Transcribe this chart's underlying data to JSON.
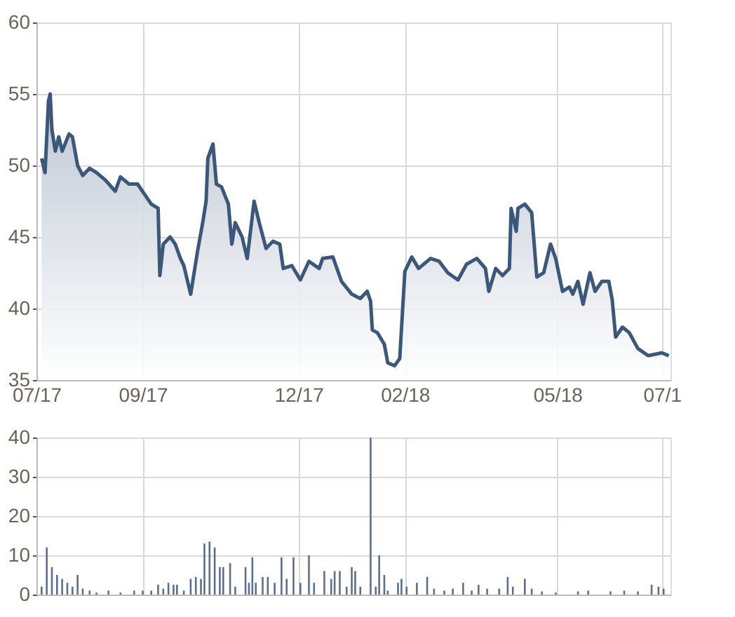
{
  "chart_data": [
    {
      "type": "area",
      "color": "#3b5779",
      "grid": true,
      "x": [
        "2017-07-04",
        "2017-07-06",
        "2017-07-08",
        "2017-07-09",
        "2017-07-10",
        "2017-07-12",
        "2017-07-14",
        "2017-07-16",
        "2017-07-20",
        "2017-07-22",
        "2017-07-25",
        "2017-07-28",
        "2017-08-01",
        "2017-08-05",
        "2017-08-10",
        "2017-08-16",
        "2017-08-19",
        "2017-08-24",
        "2017-08-29",
        "2017-09-02",
        "2017-09-06",
        "2017-09-10",
        "2017-09-11",
        "2017-09-13",
        "2017-09-17",
        "2017-09-20",
        "2017-09-23",
        "2017-09-25",
        "2017-09-29",
        "2017-10-01",
        "2017-10-03",
        "2017-10-06",
        "2017-10-08",
        "2017-10-09",
        "2017-10-12",
        "2017-10-14",
        "2017-10-17",
        "2017-10-21",
        "2017-10-23",
        "2017-10-25",
        "2017-10-29",
        "2017-11-01",
        "2017-11-05",
        "2017-11-08",
        "2017-11-12",
        "2017-11-16",
        "2017-11-20",
        "2017-11-22",
        "2017-11-27",
        "2017-12-02",
        "2017-12-07",
        "2017-12-13",
        "2017-12-15",
        "2017-12-21",
        "2017-12-26",
        "2018-01-01",
        "2018-01-06",
        "2018-01-10",
        "2018-01-12",
        "2018-01-13",
        "2018-01-16",
        "2018-01-20",
        "2018-01-22",
        "2018-01-26",
        "2018-01-29",
        "2018-02-01",
        "2018-02-05",
        "2018-02-09",
        "2018-02-16",
        "2018-02-21",
        "2018-02-26",
        "2018-03-04",
        "2018-03-09",
        "2018-03-15",
        "2018-03-20",
        "2018-03-22",
        "2018-03-26",
        "2018-03-30",
        "2018-04-03",
        "2018-04-04",
        "2018-04-07",
        "2018-04-08",
        "2018-04-12",
        "2018-04-16",
        "2018-04-19",
        "2018-04-23",
        "2018-04-27",
        "2018-04-30",
        "2018-05-04",
        "2018-05-08",
        "2018-05-10",
        "2018-05-13",
        "2018-05-16",
        "2018-05-20",
        "2018-05-23",
        "2018-05-27",
        "2018-05-31",
        "2018-06-02",
        "2018-06-04",
        "2018-06-08",
        "2018-06-12",
        "2018-06-17",
        "2018-06-23",
        "2018-07-01",
        "2018-07-05"
      ],
      "values": [
        50.5,
        49.5,
        54.5,
        55,
        52.5,
        51,
        52,
        51,
        52.2,
        52,
        50,
        49.3,
        49.8,
        49.5,
        49,
        48.2,
        49.2,
        48.7,
        48.7,
        48,
        47.3,
        47,
        42.3,
        44.5,
        45,
        44.5,
        43.5,
        43,
        41,
        42.5,
        44,
        46,
        47.5,
        50.5,
        51.5,
        48.7,
        48.5,
        47.3,
        44.5,
        46,
        45,
        43.5,
        47.5,
        46,
        44.2,
        44.7,
        44.5,
        42.8,
        43,
        42,
        43.3,
        42.8,
        43.5,
        43.6,
        41.9,
        41,
        40.7,
        41.2,
        40.5,
        38.5,
        38.3,
        37.5,
        36.2,
        36,
        36.5,
        42.6,
        43.6,
        42.8,
        43.5,
        43.3,
        42.5,
        42,
        43.1,
        43.5,
        42.8,
        41.2,
        42.8,
        42.3,
        42.8,
        47,
        45.4,
        47,
        47.3,
        46.7,
        42.2,
        42.5,
        44.5,
        43.5,
        41.2,
        41.5,
        41,
        41.9,
        40.3,
        42.5,
        41.2,
        41.9,
        41.9,
        40.6,
        38,
        38.7,
        38.3,
        37.2,
        36.7,
        36.9,
        36.7
      ],
      "xlim": [
        "2017-07-01",
        "2018-07-06"
      ],
      "xticks": [
        {
          "value": "2017-07-01",
          "label": "07/17"
        },
        {
          "value": "2017-09-01",
          "label": "09/17"
        },
        {
          "value": "2017-12-01",
          "label": "12/17"
        },
        {
          "value": "2018-02-01",
          "label": "02/18"
        },
        {
          "value": "2018-05-01",
          "label": "05/18"
        },
        {
          "value": "2018-07-01",
          "label": "07/1"
        }
      ],
      "ylim": [
        35,
        60
      ],
      "yticks": [
        35,
        40,
        45,
        50,
        55,
        60
      ]
    },
    {
      "type": "bar",
      "color": "#5a6f8f",
      "grid": true,
      "tick_labels": "y",
      "x": [
        "2017-07-04",
        "2017-07-07",
        "2017-07-10",
        "2017-07-13",
        "2017-07-16",
        "2017-07-19",
        "2017-07-22",
        "2017-07-25",
        "2017-07-28",
        "2017-08-01",
        "2017-08-05",
        "2017-08-12",
        "2017-08-19",
        "2017-08-27",
        "2017-09-01",
        "2017-09-06",
        "2017-09-10",
        "2017-09-13",
        "2017-09-16",
        "2017-09-19",
        "2017-09-21",
        "2017-09-25",
        "2017-09-29",
        "2017-10-02",
        "2017-10-05",
        "2017-10-07",
        "2017-10-10",
        "2017-10-13",
        "2017-10-16",
        "2017-10-18",
        "2017-10-22",
        "2017-10-25",
        "2017-10-31",
        "2017-11-02",
        "2017-11-04",
        "2017-11-06",
        "2017-11-10",
        "2017-11-13",
        "2017-11-17",
        "2017-11-21",
        "2017-11-24",
        "2017-11-28",
        "2017-12-02",
        "2017-12-07",
        "2017-12-10",
        "2017-12-16",
        "2017-12-20",
        "2017-12-22",
        "2017-12-25",
        "2017-12-29",
        "2018-01-01",
        "2018-01-03",
        "2018-01-06",
        "2018-01-12",
        "2018-01-15",
        "2018-01-17",
        "2018-01-20",
        "2018-01-22",
        "2018-01-28",
        "2018-01-30",
        "2018-02-02",
        "2018-02-08",
        "2018-02-14",
        "2018-02-18",
        "2018-02-24",
        "2018-03-01",
        "2018-03-07",
        "2018-03-12",
        "2018-03-16",
        "2018-03-21",
        "2018-03-28",
        "2018-04-02",
        "2018-04-05",
        "2018-04-12",
        "2018-04-16",
        "2018-04-22",
        "2018-04-30",
        "2018-05-13",
        "2018-05-19",
        "2018-06-01",
        "2018-06-09",
        "2018-06-17",
        "2018-06-25",
        "2018-06-29",
        "2018-07-02"
      ],
      "values": [
        2,
        12,
        7,
        5,
        4,
        3,
        2,
        5,
        1.5,
        1,
        0.5,
        1,
        0.5,
        1,
        1,
        1,
        2.5,
        1.5,
        3,
        2.5,
        2.5,
        1,
        4,
        4.5,
        4,
        13,
        13.5,
        12,
        7,
        7,
        8,
        2,
        7,
        3,
        9.5,
        3,
        4.5,
        4.5,
        3,
        9.5,
        4,
        9.5,
        3,
        10,
        3,
        6,
        4,
        6,
        6,
        2,
        7,
        6,
        2,
        40,
        2,
        10,
        5,
        1,
        3,
        4,
        2,
        3,
        4.5,
        1.5,
        1,
        1.5,
        3,
        1,
        2.5,
        1.5,
        1.5,
        4.5,
        2,
        4,
        1.5,
        0.8,
        0.5,
        0.8,
        1,
        0.8,
        1,
        0.8,
        2.5,
        2,
        1.5
      ],
      "xlim": [
        "2017-07-01",
        "2018-07-06"
      ],
      "xticks": [
        {
          "value": "2017-07-01",
          "label": null
        },
        {
          "value": "2017-09-01",
          "label": null
        },
        {
          "value": "2017-12-01",
          "label": null
        },
        {
          "value": "2018-02-01",
          "label": null
        },
        {
          "value": "2018-05-01",
          "label": null
        },
        {
          "value": "2018-07-01",
          "label": null
        }
      ],
      "ylim": [
        0,
        40
      ],
      "yticks": [
        0,
        10,
        20,
        30,
        40
      ]
    }
  ]
}
